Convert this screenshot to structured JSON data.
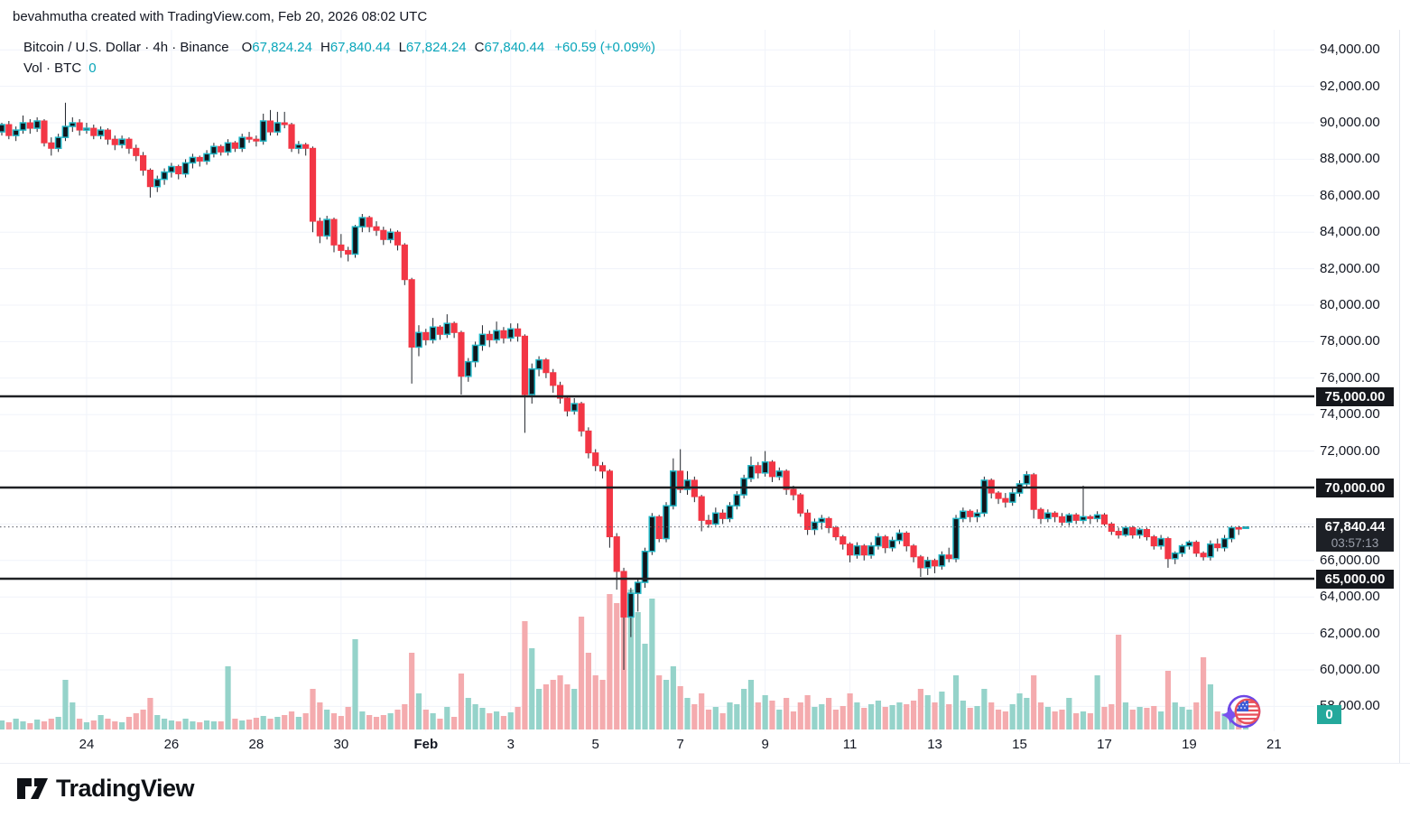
{
  "header": {
    "attribution": "bevahmutha created with TradingView.com, Feb 20, 2026 08:02 UTC"
  },
  "legend": {
    "symbol_title": "Bitcoin / U.S. Dollar · 4h · Binance",
    "o_label": "O",
    "o_value": "67,824.24",
    "h_label": "H",
    "h_value": "67,840.44",
    "l_label": "L",
    "l_value": "67,824.24",
    "c_label": "C",
    "c_value": "67,840.44",
    "change": "+60.59 (+0.09%)",
    "vol_label": "Vol · BTC",
    "vol_value": "0"
  },
  "footer": {
    "logo_text": "TradingView"
  },
  "colors": {
    "up_border": "#22b6c6",
    "up_fill": "#10151b",
    "down": "#f23645",
    "wick": "#20242b",
    "volume_up": "#95d3ca",
    "volume_down": "#f4abae",
    "grid": "#f0f3fa",
    "level_line": "#1f2124",
    "accent_text": "#0aa6ba",
    "badge_dark": "#15171c",
    "price_badge_bg": "#1d2026",
    "volume_badge_bg": "#24a99c",
    "axis_text": "#131722"
  },
  "chart_data": {
    "type": "candlestick",
    "title": "Bitcoin / U.S. Dollar · 4h · Binance",
    "symbol": "BTCUSD",
    "interval": "4h",
    "exchange": "Binance",
    "grid": true,
    "last_price": 67840.44,
    "last_price_label": "67,840.44",
    "countdown": "03:57:13",
    "volume_axis_value": "0",
    "candle_value_scale": 1000,
    "x_axis": {
      "start": "Jan 22",
      "candles_per_day": 6,
      "labels": [
        {
          "label": "24",
          "index": 12
        },
        {
          "label": "26",
          "index": 24
        },
        {
          "label": "28",
          "index": 36
        },
        {
          "label": "30",
          "index": 48
        },
        {
          "label": "Feb",
          "index": 60,
          "emphasis": true
        },
        {
          "label": "3",
          "index": 72
        },
        {
          "label": "5",
          "index": 84
        },
        {
          "label": "7",
          "index": 96
        },
        {
          "label": "9",
          "index": 108
        },
        {
          "label": "11",
          "index": 120
        },
        {
          "label": "13",
          "index": 132
        },
        {
          "label": "15",
          "index": 144
        },
        {
          "label": "17",
          "index": 156
        },
        {
          "label": "19",
          "index": 168
        },
        {
          "label": "21",
          "index": 180
        }
      ]
    },
    "y_axis": {
      "range": [
        56600,
        95100
      ],
      "ticks": [
        {
          "label": "94,000.00",
          "value": 94000
        },
        {
          "label": "92,000.00",
          "value": 92000
        },
        {
          "label": "90,000.00",
          "value": 90000
        },
        {
          "label": "88,000.00",
          "value": 88000
        },
        {
          "label": "86,000.00",
          "value": 86000
        },
        {
          "label": "84,000.00",
          "value": 84000
        },
        {
          "label": "82,000.00",
          "value": 82000
        },
        {
          "label": "80,000.00",
          "value": 80000
        },
        {
          "label": "78,000.00",
          "value": 78000
        },
        {
          "label": "76,000.00",
          "value": 76000
        },
        {
          "label": "74,000.00",
          "value": 74000
        },
        {
          "label": "72,000.00",
          "value": 72000
        },
        {
          "label": "66,000.00",
          "value": 66000
        },
        {
          "label": "64,000.00",
          "value": 64000
        },
        {
          "label": "62,000.00",
          "value": 62000
        },
        {
          "label": "60,000.00",
          "value": 60000
        },
        {
          "label": "58,000.00",
          "value": 58000
        }
      ]
    },
    "horizontal_lines": [
      {
        "value": 75000,
        "label": "75,000.00"
      },
      {
        "value": 70000,
        "label": "70,000.00"
      },
      {
        "value": 65000,
        "label": "65,000.00"
      }
    ],
    "candles": [
      [
        89.5,
        90.0,
        89.3,
        89.9,
        10
      ],
      [
        89.9,
        90.1,
        89.1,
        89.3,
        8
      ],
      [
        89.3,
        89.8,
        89.0,
        89.6,
        12
      ],
      [
        89.6,
        90.4,
        89.4,
        90.0,
        9
      ],
      [
        90.0,
        90.2,
        89.4,
        89.7,
        7
      ],
      [
        89.7,
        90.3,
        89.5,
        90.1,
        11
      ],
      [
        90.1,
        90.2,
        88.7,
        88.9,
        9
      ],
      [
        88.9,
        89.2,
        88.2,
        88.6,
        12
      ],
      [
        88.6,
        89.4,
        88.4,
        89.2,
        14
      ],
      [
        89.2,
        91.1,
        89.0,
        89.8,
        55
      ],
      [
        89.8,
        90.3,
        89.5,
        90.0,
        30
      ],
      [
        90.0,
        90.2,
        89.3,
        89.6,
        12
      ],
      [
        89.6,
        90.0,
        89.4,
        89.7,
        8
      ],
      [
        89.7,
        89.9,
        89.1,
        89.3,
        10
      ],
      [
        89.3,
        89.8,
        89.1,
        89.6,
        16
      ],
      [
        89.6,
        89.7,
        88.8,
        89.1,
        12
      ],
      [
        89.1,
        89.3,
        88.5,
        88.8,
        9
      ],
      [
        88.8,
        89.3,
        88.6,
        89.1,
        8
      ],
      [
        89.1,
        89.2,
        88.3,
        88.6,
        14
      ],
      [
        88.6,
        88.8,
        87.9,
        88.2,
        18
      ],
      [
        88.2,
        88.4,
        87.1,
        87.4,
        22
      ],
      [
        87.4,
        87.5,
        85.9,
        86.5,
        35
      ],
      [
        86.5,
        87.1,
        86.2,
        86.9,
        16
      ],
      [
        86.9,
        87.5,
        86.6,
        87.3,
        12
      ],
      [
        87.3,
        87.8,
        87.0,
        87.6,
        10
      ],
      [
        87.6,
        87.7,
        86.9,
        87.2,
        9
      ],
      [
        87.2,
        88.0,
        87.0,
        87.8,
        12
      ],
      [
        87.8,
        88.3,
        87.5,
        88.1,
        9
      ],
      [
        88.1,
        88.2,
        87.6,
        87.9,
        8
      ],
      [
        87.9,
        88.5,
        87.7,
        88.3,
        10
      ],
      [
        88.3,
        88.9,
        88.1,
        88.7,
        9
      ],
      [
        88.7,
        88.8,
        88.2,
        88.4,
        9
      ],
      [
        88.4,
        89.1,
        88.2,
        88.9,
        70
      ],
      [
        88.9,
        89.0,
        88.4,
        88.6,
        12
      ],
      [
        88.6,
        89.4,
        88.4,
        89.2,
        10
      ],
      [
        89.2,
        89.5,
        88.9,
        89.1,
        11
      ],
      [
        89.1,
        89.3,
        88.7,
        89.0,
        13
      ],
      [
        89.0,
        90.5,
        88.8,
        90.1,
        15
      ],
      [
        90.1,
        90.7,
        89.3,
        89.5,
        12
      ],
      [
        89.5,
        90.6,
        89.3,
        90.0,
        14
      ],
      [
        90.0,
        90.6,
        89.7,
        89.9,
        16
      ],
      [
        89.9,
        90.0,
        88.4,
        88.6,
        20
      ],
      [
        88.6,
        89.0,
        88.3,
        88.8,
        14
      ],
      [
        88.8,
        88.9,
        88.2,
        88.6,
        18
      ],
      [
        88.6,
        88.7,
        84.0,
        84.6,
        45
      ],
      [
        84.6,
        84.8,
        83.4,
        83.8,
        30
      ],
      [
        83.8,
        84.9,
        83.6,
        84.7,
        22
      ],
      [
        84.7,
        84.8,
        82.9,
        83.3,
        18
      ],
      [
        83.3,
        83.9,
        82.6,
        83.0,
        15
      ],
      [
        83.0,
        83.2,
        82.4,
        82.8,
        25
      ],
      [
        82.8,
        84.4,
        82.6,
        84.3,
        100
      ],
      [
        84.3,
        85.0,
        84.0,
        84.8,
        20
      ],
      [
        84.8,
        84.9,
        84.0,
        84.3,
        16
      ],
      [
        84.3,
        84.6,
        83.8,
        84.1,
        14
      ],
      [
        84.1,
        84.3,
        83.3,
        83.6,
        16
      ],
      [
        83.6,
        84.2,
        83.4,
        84.0,
        18
      ],
      [
        84.0,
        84.1,
        83.0,
        83.3,
        22
      ],
      [
        83.3,
        83.4,
        81.1,
        81.4,
        28
      ],
      [
        81.4,
        81.5,
        75.7,
        77.7,
        85
      ],
      [
        77.7,
        78.9,
        77.2,
        78.5,
        40
      ],
      [
        78.5,
        78.7,
        77.8,
        78.1,
        22
      ],
      [
        78.1,
        79.3,
        77.9,
        78.8,
        18
      ],
      [
        78.8,
        78.9,
        78.1,
        78.4,
        12
      ],
      [
        78.4,
        79.5,
        78.2,
        79.0,
        25
      ],
      [
        79.0,
        79.1,
        78.2,
        78.5,
        14
      ],
      [
        78.5,
        78.6,
        75.1,
        76.1,
        62
      ],
      [
        76.1,
        77.1,
        75.8,
        76.9,
        35
      ],
      [
        76.9,
        78.0,
        76.6,
        77.8,
        28
      ],
      [
        77.8,
        78.9,
        77.5,
        78.4,
        24
      ],
      [
        78.4,
        78.6,
        77.7,
        78.1,
        18
      ],
      [
        78.1,
        79.1,
        77.9,
        78.6,
        20
      ],
      [
        78.6,
        78.8,
        77.9,
        78.2,
        15
      ],
      [
        78.2,
        79.0,
        78.0,
        78.7,
        19
      ],
      [
        78.7,
        79.0,
        78.0,
        78.3,
        25
      ],
      [
        78.3,
        78.4,
        73.0,
        75.1,
        120
      ],
      [
        75.1,
        76.8,
        74.6,
        76.5,
        90
      ],
      [
        76.5,
        77.2,
        76.1,
        77.0,
        45
      ],
      [
        77.0,
        77.1,
        76.0,
        76.3,
        50
      ],
      [
        76.3,
        76.5,
        75.2,
        75.6,
        55
      ],
      [
        75.6,
        75.8,
        74.6,
        74.9,
        60
      ],
      [
        74.9,
        75.0,
        73.9,
        74.2,
        50
      ],
      [
        74.2,
        74.9,
        74.0,
        74.6,
        45
      ],
      [
        74.6,
        74.7,
        72.8,
        73.1,
        125
      ],
      [
        73.1,
        73.3,
        71.6,
        71.9,
        85
      ],
      [
        71.9,
        72.1,
        70.9,
        71.2,
        60
      ],
      [
        71.2,
        71.4,
        70.5,
        70.9,
        55
      ],
      [
        70.9,
        71.0,
        66.7,
        67.3,
        150
      ],
      [
        67.3,
        67.5,
        64.4,
        65.4,
        140
      ],
      [
        65.4,
        65.6,
        60.0,
        62.9,
        160
      ],
      [
        62.9,
        64.5,
        61.8,
        64.2,
        155
      ],
      [
        64.2,
        65.0,
        63.2,
        64.8,
        130
      ],
      [
        64.8,
        66.7,
        64.5,
        66.5,
        95
      ],
      [
        66.5,
        68.6,
        66.3,
        68.4,
        145
      ],
      [
        68.4,
        68.5,
        67.0,
        67.2,
        60
      ],
      [
        67.2,
        69.2,
        67.0,
        69.0,
        55
      ],
      [
        69.0,
        71.6,
        68.8,
        70.9,
        70
      ],
      [
        70.9,
        72.1,
        69.7,
        69.9,
        48
      ],
      [
        69.9,
        70.9,
        69.6,
        70.4,
        35
      ],
      [
        70.4,
        70.6,
        69.2,
        69.5,
        28
      ],
      [
        69.5,
        69.6,
        67.6,
        68.2,
        40
      ],
      [
        68.2,
        68.5,
        67.8,
        68.0,
        22
      ],
      [
        68.0,
        68.9,
        67.9,
        68.6,
        25
      ],
      [
        68.6,
        68.8,
        68.0,
        68.3,
        18
      ],
      [
        68.3,
        69.2,
        68.1,
        69.0,
        30
      ],
      [
        69.0,
        69.8,
        68.8,
        69.6,
        28
      ],
      [
        69.6,
        70.7,
        69.4,
        70.5,
        45
      ],
      [
        70.5,
        71.7,
        70.3,
        71.2,
        55
      ],
      [
        71.2,
        71.4,
        70.5,
        70.8,
        30
      ],
      [
        70.8,
        72.0,
        70.6,
        71.4,
        38
      ],
      [
        71.4,
        71.5,
        70.3,
        70.6,
        32
      ],
      [
        70.6,
        71.1,
        70.4,
        70.9,
        22
      ],
      [
        70.9,
        71.0,
        69.6,
        69.9,
        35
      ],
      [
        69.9,
        70.1,
        69.3,
        69.6,
        20
      ],
      [
        69.6,
        69.7,
        68.4,
        68.6,
        30
      ],
      [
        68.6,
        68.8,
        67.4,
        67.7,
        38
      ],
      [
        67.7,
        68.3,
        67.4,
        68.1,
        25
      ],
      [
        68.1,
        68.5,
        67.7,
        68.3,
        28
      ],
      [
        68.3,
        68.4,
        67.5,
        67.8,
        35
      ],
      [
        67.8,
        67.9,
        67.1,
        67.3,
        22
      ],
      [
        67.3,
        67.4,
        66.6,
        66.9,
        26
      ],
      [
        66.9,
        67.0,
        65.9,
        66.3,
        40
      ],
      [
        66.3,
        67.0,
        66.1,
        66.8,
        30
      ],
      [
        66.8,
        66.9,
        66.0,
        66.3,
        24
      ],
      [
        66.3,
        67.0,
        66.1,
        66.8,
        28
      ],
      [
        66.8,
        67.5,
        66.6,
        67.3,
        32
      ],
      [
        67.3,
        67.4,
        66.4,
        66.7,
        25
      ],
      [
        66.7,
        67.3,
        66.5,
        67.1,
        27
      ],
      [
        67.1,
        67.7,
        66.9,
        67.5,
        30
      ],
      [
        67.5,
        67.6,
        66.5,
        66.8,
        28
      ],
      [
        66.8,
        66.9,
        65.9,
        66.2,
        32
      ],
      [
        66.2,
        66.3,
        65.1,
        65.6,
        45
      ],
      [
        65.6,
        66.2,
        65.2,
        66.0,
        38
      ],
      [
        66.0,
        66.1,
        65.3,
        65.7,
        30
      ],
      [
        65.7,
        66.5,
        65.5,
        66.3,
        42
      ],
      [
        66.3,
        66.7,
        65.9,
        66.1,
        28
      ],
      [
        66.1,
        68.5,
        65.9,
        68.3,
        60
      ],
      [
        68.3,
        68.9,
        68.1,
        68.7,
        32
      ],
      [
        68.7,
        68.8,
        68.1,
        68.4,
        24
      ],
      [
        68.4,
        68.8,
        68.1,
        68.6,
        26
      ],
      [
        68.6,
        70.6,
        68.4,
        70.4,
        45
      ],
      [
        70.4,
        70.5,
        69.4,
        69.7,
        30
      ],
      [
        69.7,
        69.8,
        69.1,
        69.4,
        22
      ],
      [
        69.4,
        69.7,
        68.9,
        69.2,
        20
      ],
      [
        69.2,
        70.0,
        69.0,
        69.7,
        28
      ],
      [
        69.7,
        70.4,
        69.5,
        70.2,
        40
      ],
      [
        70.2,
        70.9,
        70.0,
        70.7,
        35
      ],
      [
        70.7,
        70.8,
        68.3,
        68.8,
        60
      ],
      [
        68.8,
        68.9,
        68.0,
        68.3,
        30
      ],
      [
        68.3,
        68.8,
        68.1,
        68.6,
        25
      ],
      [
        68.6,
        68.7,
        68.1,
        68.4,
        20
      ],
      [
        68.4,
        68.6,
        67.9,
        68.1,
        22
      ],
      [
        68.1,
        68.6,
        67.9,
        68.5,
        35
      ],
      [
        68.5,
        68.6,
        68.0,
        68.2,
        18
      ],
      [
        68.2,
        70.1,
        68.0,
        68.4,
        20
      ],
      [
        68.4,
        68.5,
        68.0,
        68.3,
        18
      ],
      [
        68.3,
        68.7,
        68.1,
        68.5,
        60
      ],
      [
        68.5,
        68.6,
        67.9,
        68.0,
        25
      ],
      [
        68.0,
        68.1,
        67.4,
        67.6,
        28
      ],
      [
        67.6,
        67.8,
        67.2,
        67.4,
        105
      ],
      [
        67.4,
        67.9,
        67.3,
        67.8,
        30
      ],
      [
        67.8,
        67.9,
        67.2,
        67.4,
        22
      ],
      [
        67.4,
        67.8,
        67.2,
        67.7,
        25
      ],
      [
        67.7,
        67.8,
        67.1,
        67.3,
        24
      ],
      [
        67.3,
        67.4,
        66.6,
        66.8,
        26
      ],
      [
        66.8,
        67.4,
        66.6,
        67.2,
        20
      ],
      [
        67.2,
        67.3,
        65.6,
        66.1,
        65
      ],
      [
        66.1,
        66.5,
        65.8,
        66.4,
        30
      ],
      [
        66.4,
        66.9,
        66.2,
        66.8,
        25
      ],
      [
        66.8,
        67.1,
        66.6,
        67.0,
        22
      ],
      [
        67.0,
        67.1,
        66.2,
        66.4,
        30
      ],
      [
        66.4,
        66.5,
        66.0,
        66.2,
        80
      ],
      [
        66.2,
        67.1,
        66.0,
        66.9,
        50
      ],
      [
        66.9,
        67.2,
        66.5,
        66.7,
        20
      ],
      [
        66.7,
        67.4,
        66.5,
        67.2,
        18
      ],
      [
        67.2,
        67.9,
        67.0,
        67.8,
        20
      ],
      [
        67.8,
        67.9,
        67.4,
        67.78,
        15
      ],
      [
        67.82,
        67.85,
        67.78,
        67.84,
        2
      ]
    ]
  }
}
